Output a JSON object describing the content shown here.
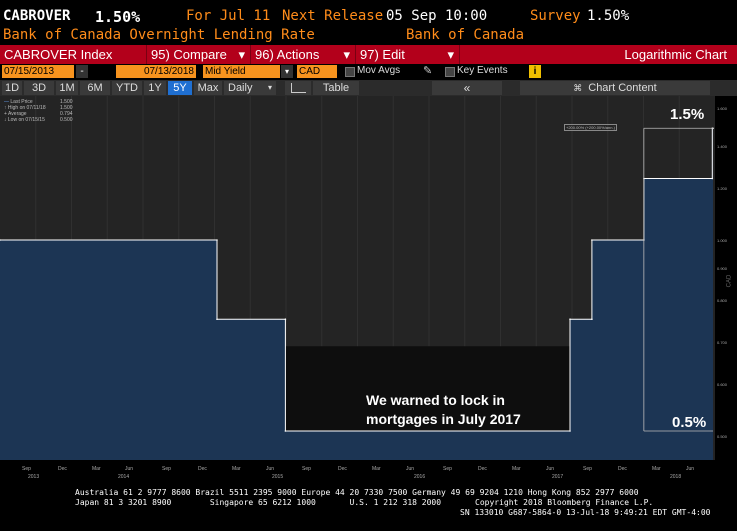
{
  "header": {
    "ticker": "CABROVER",
    "last_value": "1.50%",
    "for_label": "For Jul 11",
    "next_release_label": "Next Release",
    "next_release": "05 Sep 10:00",
    "survey_label": "Survey",
    "survey_value": "1.50%",
    "description": "Bank of Canada Overnight Lending Rate",
    "source": "Bank of Canada"
  },
  "toolbar": {
    "security": "CABROVER Index",
    "compare": "95) Compare",
    "actions": "96) Actions",
    "edit": "97) Edit",
    "chart_type": "Logarithmic Chart"
  },
  "controls": {
    "start_date": "07/15/2013",
    "end_date": "07/13/2018",
    "field": "Mid Yield",
    "currency": "CAD",
    "mov_avgs": "Mov Avgs",
    "key_events": "Key Events",
    "info": "i"
  },
  "ranges": [
    "1D",
    "3D",
    "1M",
    "6M",
    "YTD",
    "1Y",
    "5Y",
    "Max"
  ],
  "active_range": "5Y",
  "period": "Daily",
  "table_label": "Table",
  "collapse_label": "«",
  "chart_content_label": "Chart Content",
  "legend": {
    "last_price": "Last Price",
    "last_price_val": "1.500",
    "high": "High on 07/11/18",
    "high_val": "1.500",
    "average": "Average",
    "average_val": "0.794",
    "low": "Low on 07/15/15",
    "low_val": "0.500"
  },
  "measure_label": "+200.00% (+200.00%/ann.)",
  "annotations": {
    "top": "1.5%",
    "bottom": "0.5%",
    "note_line1": "We warned to lock in",
    "note_line2": "mortgages in July 2017"
  },
  "axis": {
    "y_ticks": [
      "1.600",
      "1.400",
      "1.200",
      "1.000",
      "0.900",
      "0.800",
      "0.700",
      "0.600",
      "0.500"
    ],
    "y_label": "CAD",
    "x_months": [
      "Sep",
      "Dec",
      "Mar",
      "Jun",
      "Sep",
      "Dec",
      "Mar",
      "Jun",
      "Sep",
      "Dec",
      "Mar",
      "Jun",
      "Sep",
      "Dec",
      "Mar",
      "Jun",
      "Sep",
      "Dec",
      "Mar",
      "Jun"
    ],
    "x_years": [
      "2013",
      "2014",
      "2015",
      "2016",
      "2017",
      "2018"
    ]
  },
  "chart_data": {
    "type": "area",
    "title": "",
    "ylabel": "",
    "yscale": "log",
    "ylim": [
      0.45,
      1.65
    ],
    "series": [
      {
        "points": [
          {
            "x": "2013-07-15",
            "y": 1.0
          },
          {
            "x": "2015-01-21",
            "y": 1.0
          },
          {
            "x": "2015-01-21",
            "y": 0.75
          },
          {
            "x": "2015-07-15",
            "y": 0.75
          },
          {
            "x": "2015-07-15",
            "y": 0.5
          },
          {
            "x": "2017-07-12",
            "y": 0.5
          },
          {
            "x": "2017-07-12",
            "y": 0.75
          },
          {
            "x": "2017-09-06",
            "y": 0.75
          },
          {
            "x": "2017-09-06",
            "y": 1.0
          },
          {
            "x": "2018-01-17",
            "y": 1.0
          },
          {
            "x": "2018-01-17",
            "y": 1.25
          },
          {
            "x": "2018-07-11",
            "y": 1.25
          },
          {
            "x": "2018-07-11",
            "y": 1.5
          },
          {
            "x": "2018-07-13",
            "y": 1.5
          }
        ]
      }
    ]
  },
  "footer": {
    "line1": "Australia 61 2 9777 8600 Brazil 5511 2395 9000 Europe 44 20 7330 7500 Germany 49 69 9204 1210 Hong Kong 852 2977 6000",
    "line2a": "Japan 81 3 3201 8900        Singapore 65 6212 1000       U.S. 1 212 318 2000",
    "line2b": "Copyright 2018 Bloomberg Finance L.P.",
    "line3": "SN 133010 G687-5864-0 13-Jul-18  9:49:21 EDT  GMT-4:00"
  },
  "colors": {
    "accent_orange": "#ff8c1a",
    "bar_red": "#b3001b",
    "area_fill": "#1c3554",
    "active_blue": "#1f6fd1"
  }
}
